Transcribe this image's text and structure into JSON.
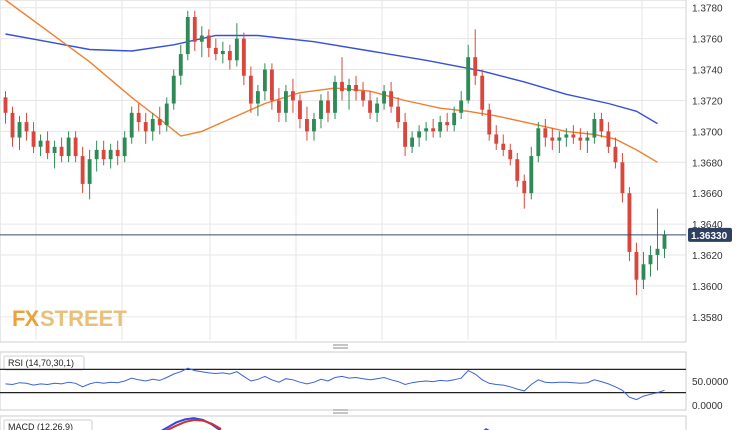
{
  "logo": {
    "fx": "FX",
    "street": "STREET"
  },
  "colors": {
    "up": "#2e8b57",
    "down": "#d9473c",
    "sma_fast": "#f07f2e",
    "sma_slow": "#3650d8",
    "rsi_line": "#3a62d8",
    "macd_fast": "#3048e0",
    "macd_slow": "#d03030",
    "grid": "#e6e6e6",
    "current_line": "#3a4a6a",
    "price_tag": "#2f3f5f"
  },
  "chart_data": [
    {
      "type": "candlestick",
      "title": "",
      "ylim": [
        1.3565,
        1.3785
      ],
      "yticks": [
        "1.3780",
        "1.3760",
        "1.3740",
        "1.3720",
        "1.3700",
        "1.3680",
        "1.3660",
        "1.3640",
        "1.3620",
        "1.3600",
        "1.3580"
      ],
      "grid": true,
      "current_price": 1.3633,
      "current_price_label": "1.36330",
      "candles": [
        [
          1.3722,
          1.3726,
          1.3705,
          1.3712
        ],
        [
          1.3712,
          1.3716,
          1.369,
          1.3696
        ],
        [
          1.3696,
          1.371,
          1.3688,
          1.3706
        ],
        [
          1.3706,
          1.3712,
          1.3694,
          1.37
        ],
        [
          1.37,
          1.3706,
          1.3686,
          1.369
        ],
        [
          1.369,
          1.3698,
          1.3684,
          1.3694
        ],
        [
          1.3694,
          1.37,
          1.3682,
          1.3686
        ],
        [
          1.3686,
          1.3694,
          1.3676,
          1.369
        ],
        [
          1.369,
          1.3696,
          1.368,
          1.3684
        ],
        [
          1.3684,
          1.37,
          1.368,
          1.3696
        ],
        [
          1.3696,
          1.37,
          1.368,
          1.3684
        ],
        [
          1.3684,
          1.369,
          1.366,
          1.3666
        ],
        [
          1.3666,
          1.3688,
          1.3656,
          1.3682
        ],
        [
          1.3682,
          1.3694,
          1.3674,
          1.3688
        ],
        [
          1.3688,
          1.3694,
          1.3678,
          1.3682
        ],
        [
          1.3682,
          1.3692,
          1.3676,
          1.3688
        ],
        [
          1.3688,
          1.3694,
          1.3678,
          1.3684
        ],
        [
          1.3684,
          1.37,
          1.368,
          1.3696
        ],
        [
          1.3696,
          1.3716,
          1.3692,
          1.3712
        ],
        [
          1.3712,
          1.3718,
          1.37,
          1.3706
        ],
        [
          1.3706,
          1.3712,
          1.3692,
          1.37
        ],
        [
          1.37,
          1.3712,
          1.3694,
          1.3708
        ],
        [
          1.3708,
          1.3716,
          1.3698,
          1.3704
        ],
        [
          1.3704,
          1.3722,
          1.37,
          1.3718
        ],
        [
          1.3718,
          1.374,
          1.3714,
          1.3736
        ],
        [
          1.3736,
          1.3756,
          1.373,
          1.375
        ],
        [
          1.375,
          1.3778,
          1.3746,
          1.3774
        ],
        [
          1.3774,
          1.3778,
          1.3752,
          1.3758
        ],
        [
          1.3758,
          1.3768,
          1.3748,
          1.3762
        ],
        [
          1.3762,
          1.3766,
          1.3748,
          1.3754
        ],
        [
          1.3754,
          1.376,
          1.3746,
          1.375
        ],
        [
          1.375,
          1.3758,
          1.3744,
          1.3752
        ],
        [
          1.3752,
          1.3756,
          1.374,
          1.3746
        ],
        [
          1.3746,
          1.377,
          1.3742,
          1.376
        ],
        [
          1.376,
          1.3764,
          1.373,
          1.3736
        ],
        [
          1.3736,
          1.3742,
          1.3712,
          1.3718
        ],
        [
          1.3718,
          1.373,
          1.371,
          1.3726
        ],
        [
          1.3726,
          1.3744,
          1.372,
          1.374
        ],
        [
          1.374,
          1.3744,
          1.3714,
          1.372
        ],
        [
          1.372,
          1.3728,
          1.3706,
          1.3712
        ],
        [
          1.3712,
          1.373,
          1.3706,
          1.3726
        ],
        [
          1.3726,
          1.3734,
          1.3712,
          1.372
        ],
        [
          1.372,
          1.3724,
          1.3702,
          1.3708
        ],
        [
          1.3708,
          1.3716,
          1.3694,
          1.37
        ],
        [
          1.37,
          1.3712,
          1.3694,
          1.3708
        ],
        [
          1.3708,
          1.3724,
          1.3702,
          1.372
        ],
        [
          1.372,
          1.3726,
          1.3706,
          1.3712
        ],
        [
          1.3712,
          1.3736,
          1.3708,
          1.3732
        ],
        [
          1.3732,
          1.3748,
          1.372,
          1.3726
        ],
        [
          1.3726,
          1.3734,
          1.3714,
          1.373
        ],
        [
          1.373,
          1.3736,
          1.372,
          1.3726
        ],
        [
          1.3726,
          1.3732,
          1.3716,
          1.372
        ],
        [
          1.372,
          1.3726,
          1.3708,
          1.3712
        ],
        [
          1.3712,
          1.3722,
          1.3706,
          1.3718
        ],
        [
          1.3718,
          1.373,
          1.3714,
          1.3726
        ],
        [
          1.3726,
          1.3732,
          1.3712,
          1.3716
        ],
        [
          1.3716,
          1.3722,
          1.3702,
          1.3706
        ],
        [
          1.3706,
          1.3712,
          1.3684,
          1.369
        ],
        [
          1.369,
          1.37,
          1.3686,
          1.3696
        ],
        [
          1.3696,
          1.3704,
          1.369,
          1.37
        ],
        [
          1.37,
          1.3706,
          1.3694,
          1.3702
        ],
        [
          1.3702,
          1.3708,
          1.3696,
          1.37
        ],
        [
          1.37,
          1.371,
          1.3696,
          1.3706
        ],
        [
          1.3706,
          1.3712,
          1.37,
          1.3704
        ],
        [
          1.3704,
          1.3716,
          1.37,
          1.3712
        ],
        [
          1.3712,
          1.3726,
          1.3708,
          1.372
        ],
        [
          1.372,
          1.3756,
          1.3718,
          1.3748
        ],
        [
          1.3748,
          1.3766,
          1.373,
          1.3736
        ],
        [
          1.3736,
          1.374,
          1.371,
          1.3714
        ],
        [
          1.3714,
          1.3718,
          1.3694,
          1.3698
        ],
        [
          1.3698,
          1.3704,
          1.3688,
          1.3692
        ],
        [
          1.3692,
          1.3698,
          1.3684,
          1.3688
        ],
        [
          1.3688,
          1.3692,
          1.3678,
          1.3682
        ],
        [
          1.3682,
          1.3686,
          1.3664,
          1.3668
        ],
        [
          1.3668,
          1.3672,
          1.365,
          1.366
        ],
        [
          1.366,
          1.369,
          1.3656,
          1.3684
        ],
        [
          1.3684,
          1.3706,
          1.368,
          1.3702
        ],
        [
          1.3702,
          1.3708,
          1.369,
          1.3696
        ],
        [
          1.3696,
          1.3702,
          1.3688,
          1.3694
        ],
        [
          1.3694,
          1.37,
          1.3686,
          1.3696
        ],
        [
          1.3696,
          1.3702,
          1.369,
          1.3698
        ],
        [
          1.3698,
          1.3704,
          1.3692,
          1.3696
        ],
        [
          1.3696,
          1.3702,
          1.3688,
          1.3694
        ],
        [
          1.3694,
          1.37,
          1.3686,
          1.3696
        ],
        [
          1.3696,
          1.3712,
          1.3692,
          1.3708
        ],
        [
          1.3708,
          1.3712,
          1.3696,
          1.37
        ],
        [
          1.37,
          1.3706,
          1.3686,
          1.369
        ],
        [
          1.369,
          1.3696,
          1.3676,
          1.368
        ],
        [
          1.368,
          1.3686,
          1.3654,
          1.366
        ],
        [
          1.366,
          1.3664,
          1.3616,
          1.3622
        ],
        [
          1.3622,
          1.3628,
          1.3594,
          1.3604
        ],
        [
          1.3604,
          1.3622,
          1.3598,
          1.3614
        ],
        [
          1.3614,
          1.3626,
          1.3606,
          1.362
        ],
        [
          1.362,
          1.365,
          1.361,
          1.3624
        ],
        [
          1.3624,
          1.3636,
          1.3618,
          1.3633
        ]
      ],
      "sma_fast": [
        [
          0,
          1.3785
        ],
        [
          6,
          1.3765
        ],
        [
          12,
          1.3745
        ],
        [
          18,
          1.3722
        ],
        [
          22,
          1.3708
        ],
        [
          25,
          1.3697
        ],
        [
          28,
          1.37
        ],
        [
          32,
          1.3708
        ],
        [
          37,
          1.3718
        ],
        [
          42,
          1.3725
        ],
        [
          47,
          1.3728
        ],
        [
          52,
          1.3726
        ],
        [
          57,
          1.372
        ],
        [
          62,
          1.3715
        ],
        [
          66,
          1.3713
        ],
        [
          70,
          1.371
        ],
        [
          75,
          1.3705
        ],
        [
          80,
          1.37
        ],
        [
          84,
          1.3698
        ],
        [
          87,
          1.3695
        ],
        [
          90,
          1.3688
        ],
        [
          93,
          1.368
        ]
      ],
      "sma_slow": [
        [
          0,
          1.3763
        ],
        [
          6,
          1.3758
        ],
        [
          12,
          1.3753
        ],
        [
          18,
          1.3752
        ],
        [
          24,
          1.3756
        ],
        [
          30,
          1.3762
        ],
        [
          36,
          1.3762
        ],
        [
          44,
          1.3758
        ],
        [
          52,
          1.3752
        ],
        [
          60,
          1.3746
        ],
        [
          68,
          1.3739
        ],
        [
          74,
          1.3732
        ],
        [
          80,
          1.3724
        ],
        [
          86,
          1.3718
        ],
        [
          90,
          1.3713
        ],
        [
          93,
          1.3705
        ]
      ]
    },
    {
      "type": "line",
      "title": "RSI (14,70,30,1)",
      "ylim": [
        0,
        100
      ],
      "yticks": [
        "50.0000",
        "0.0000"
      ],
      "levels": [
        70,
        30
      ],
      "values": [
        45,
        44,
        47,
        46,
        43,
        45,
        44,
        46,
        45,
        48,
        46,
        40,
        45,
        48,
        46,
        48,
        47,
        50,
        55,
        52,
        50,
        53,
        51,
        56,
        62,
        66,
        72,
        68,
        66,
        64,
        63,
        64,
        62,
        66,
        58,
        50,
        53,
        58,
        52,
        48,
        54,
        52,
        48,
        45,
        48,
        53,
        50,
        56,
        58,
        55,
        56,
        54,
        52,
        54,
        56,
        52,
        49,
        44,
        47,
        49,
        50,
        49,
        51,
        50,
        52,
        55,
        68,
        62,
        52,
        46,
        44,
        43,
        40,
        36,
        33,
        44,
        52,
        48,
        47,
        48,
        48,
        47,
        46,
        47,
        52,
        49,
        45,
        40,
        34,
        22,
        18,
        24,
        27,
        30,
        34
      ]
    },
    {
      "type": "line",
      "title": "MACD (12,26,9)",
      "series": [
        {
          "values": [
            1.0,
            2.6,
            4.2,
            5.2,
            5.6,
            5.0,
            3.6,
            1.6
          ]
        },
        {
          "values": [
            0.6,
            1.8,
            3.2,
            4.4,
            5.0,
            4.8,
            3.8,
            2.2
          ]
        }
      ]
    }
  ]
}
